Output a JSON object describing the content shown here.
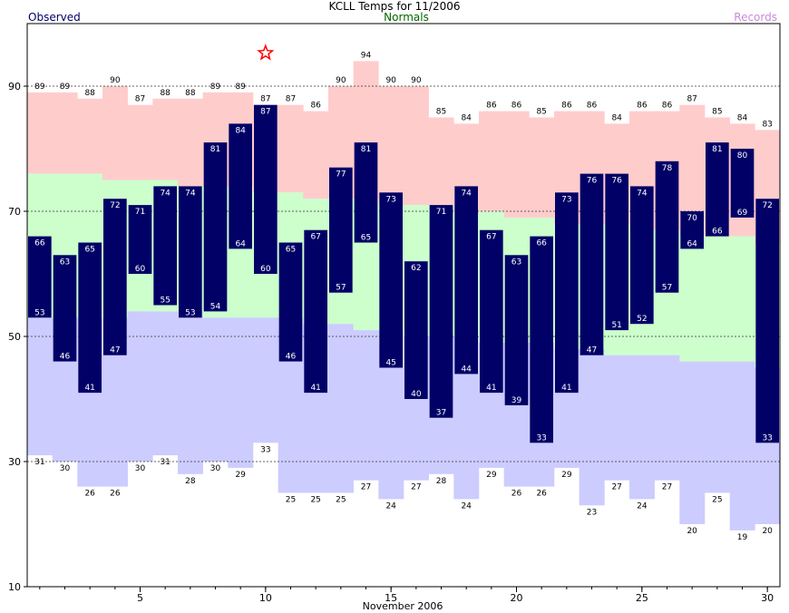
{
  "header": {
    "title": "KCLL Temps for 11/2006",
    "observed_label": "Observed",
    "normals_label": "Normals",
    "records_label": "Records",
    "xlabel": "November 2006"
  },
  "colors": {
    "observed_bar": "#000066",
    "record_high_band": "#ffcccc",
    "normal_band": "#ccffcc",
    "record_low_band": "#ccccff",
    "observed_title": "#000066",
    "normals_title": "#006600",
    "records_title": "#cc88dd",
    "record_marker": "#ff0000"
  },
  "chart_data": {
    "type": "bar",
    "title": "KCLL Temps for 11/2006",
    "xlabel": "November 2006",
    "ylabel": "",
    "ylim": [
      10,
      100
    ],
    "yticks": [
      10,
      30,
      50,
      70,
      90
    ],
    "xticks": [
      5,
      10,
      15,
      20,
      25,
      30
    ],
    "grid": "dashed horizontal at 30, 50, 70, 90",
    "days": [
      1,
      2,
      3,
      4,
      5,
      6,
      7,
      8,
      9,
      10,
      11,
      12,
      13,
      14,
      15,
      16,
      17,
      18,
      19,
      20,
      21,
      22,
      23,
      24,
      25,
      26,
      27,
      28,
      29,
      30
    ],
    "observed_high": [
      66,
      63,
      65,
      72,
      71,
      74,
      74,
      81,
      84,
      87,
      65,
      67,
      77,
      81,
      73,
      62,
      71,
      74,
      67,
      63,
      66,
      73,
      76,
      76,
      74,
      78,
      70,
      81,
      80,
      72
    ],
    "observed_low": [
      53,
      46,
      41,
      47,
      60,
      55,
      53,
      54,
      64,
      60,
      46,
      41,
      57,
      65,
      45,
      40,
      37,
      44,
      41,
      39,
      33,
      41,
      47,
      51,
      52,
      57,
      64,
      66,
      69,
      33
    ],
    "normal_high": [
      76,
      76,
      76,
      75,
      75,
      75,
      74,
      74,
      74,
      73,
      73,
      72,
      72,
      72,
      71,
      71,
      71,
      70,
      70,
      69,
      69,
      68,
      68,
      68,
      67,
      67,
      66,
      66,
      66,
      65
    ],
    "normal_low": [
      53,
      53,
      53,
      53,
      54,
      54,
      54,
      53,
      53,
      53,
      53,
      52,
      52,
      51,
      51,
      50,
      50,
      50,
      49,
      49,
      49,
      48,
      48,
      47,
      47,
      47,
      46,
      46,
      46,
      45
    ],
    "record_high": [
      89,
      89,
      88,
      90,
      87,
      88,
      88,
      89,
      89,
      87,
      87,
      86,
      90,
      94,
      90,
      90,
      85,
      84,
      86,
      86,
      85,
      86,
      86,
      84,
      86,
      86,
      87,
      85,
      84,
      83
    ],
    "record_low": [
      31,
      30,
      26,
      26,
      30,
      31,
      28,
      30,
      29,
      33,
      25,
      25,
      25,
      27,
      24,
      27,
      28,
      24,
      29,
      26,
      26,
      29,
      23,
      27,
      24,
      27,
      20,
      25,
      19,
      20
    ],
    "record_set": [
      {
        "day": 10,
        "type": "record_high_tied",
        "value": 87
      }
    ]
  }
}
